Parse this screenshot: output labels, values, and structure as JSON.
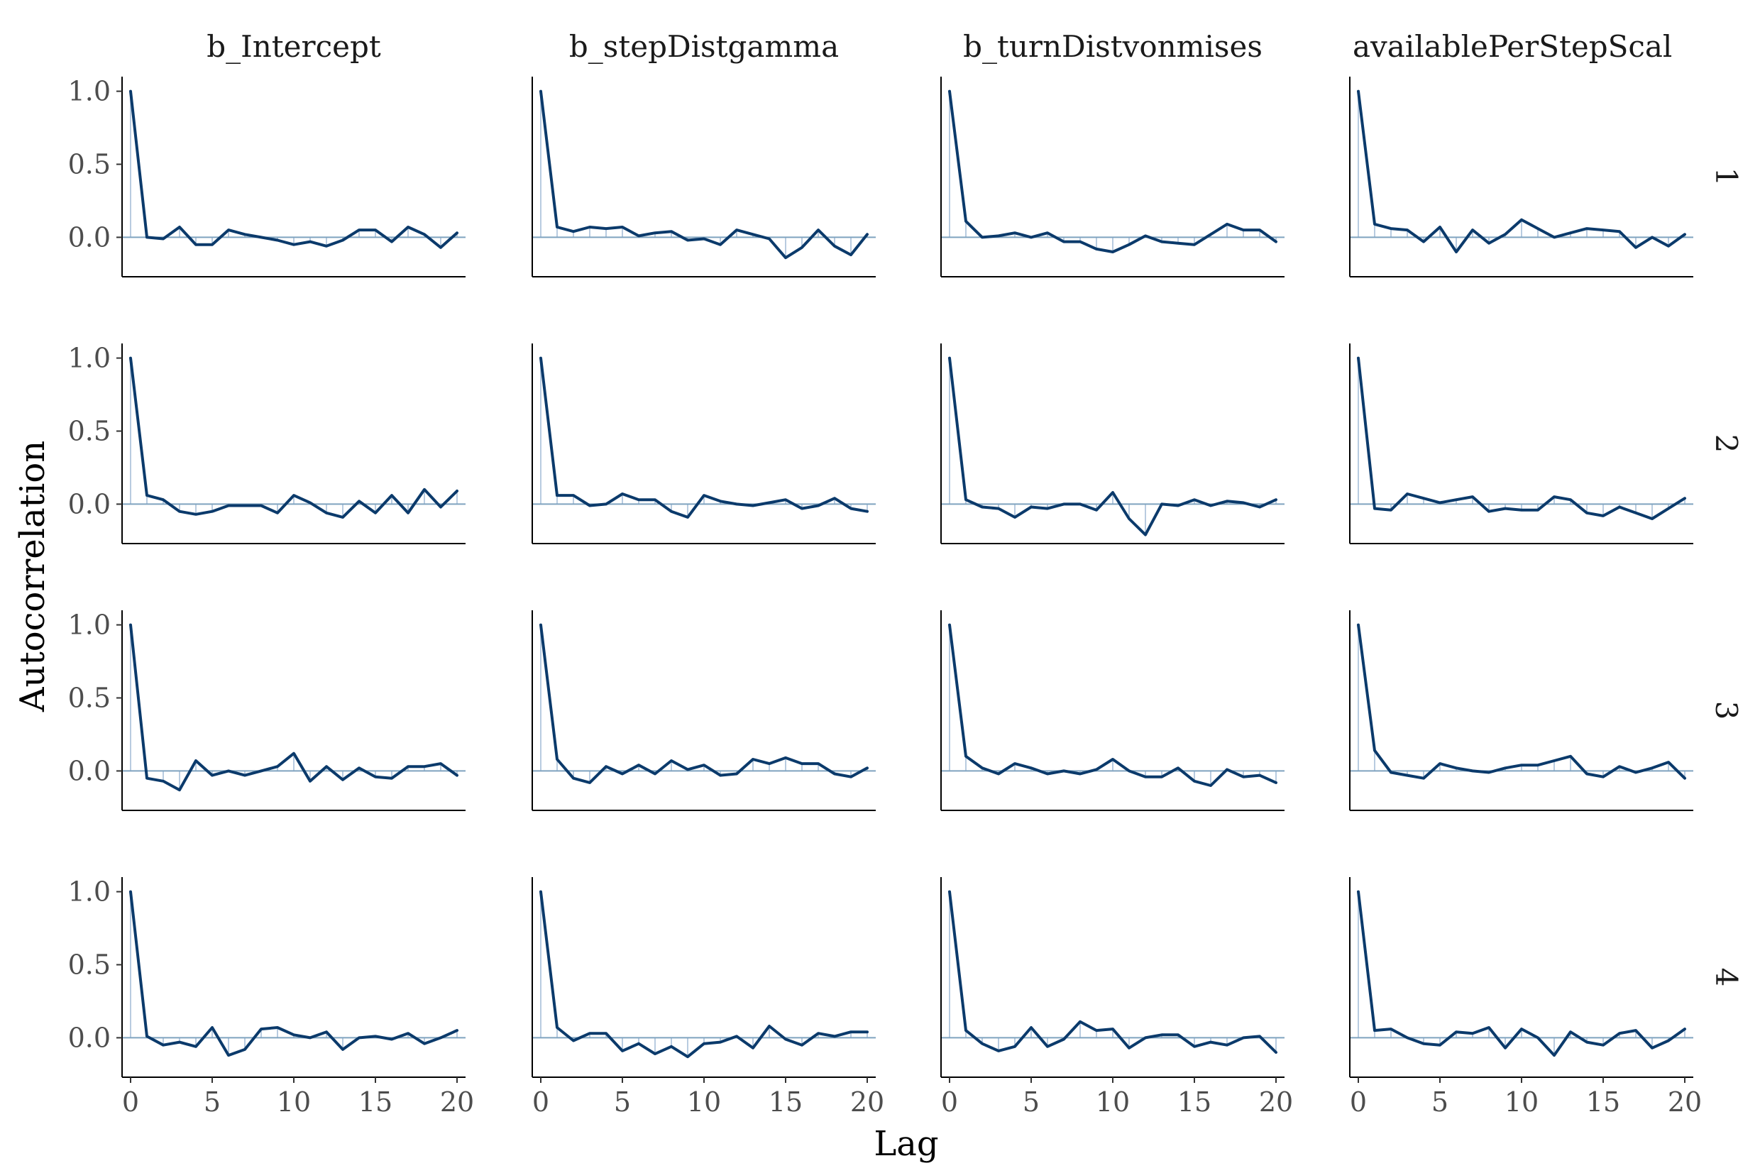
{
  "chart_data": {
    "type": "line",
    "xlabel": "Lag",
    "ylabel": "Autocorrelation",
    "xlim": [
      0,
      20
    ],
    "ylim": [
      -0.27,
      1.1
    ],
    "x_ticks": [
      0,
      5,
      10,
      15,
      20
    ],
    "x_tick_labels": [
      "0",
      "5",
      "10",
      "15",
      "20"
    ],
    "y_ticks": [
      0,
      0.5,
      1
    ],
    "y_tick_labels": [
      "0.0",
      "0.5",
      "1.0"
    ],
    "columns": [
      "b_Intercept",
      "b_stepDistgamma",
      "b_turnDistvonmises",
      "availablePerStepScaled"
    ],
    "column_labels_visible": [
      "b_Intercept",
      "b_stepDistgamma",
      "b_turnDistvonmises",
      "availablePerStepScal"
    ],
    "rows": [
      "1",
      "2",
      "3",
      "4"
    ],
    "grid": false,
    "zero_line": true,
    "colors": {
      "line": "#0b3a6b",
      "zero_line": "#7fa3bf",
      "lag_bar": "#b8cbe0",
      "axis": "#000000"
    },
    "lags": [
      0,
      1,
      2,
      3,
      4,
      5,
      6,
      7,
      8,
      9,
      10,
      11,
      12,
      13,
      14,
      15,
      16,
      17,
      18,
      19,
      20
    ],
    "panels": [
      [
        [
          1.0,
          0.0,
          -0.01,
          0.07,
          -0.05,
          -0.05,
          0.05,
          0.02,
          0.0,
          -0.02,
          -0.05,
          -0.03,
          -0.06,
          -0.02,
          0.05,
          0.05,
          -0.03,
          0.07,
          0.02,
          -0.07,
          0.03
        ],
        [
          1.0,
          0.07,
          0.04,
          0.07,
          0.06,
          0.07,
          0.01,
          0.03,
          0.04,
          -0.02,
          -0.01,
          -0.05,
          0.05,
          0.02,
          -0.01,
          -0.14,
          -0.07,
          0.05,
          -0.06,
          -0.12,
          0.02
        ],
        [
          1.0,
          0.11,
          0.0,
          0.01,
          0.03,
          0.0,
          0.03,
          -0.03,
          -0.03,
          -0.08,
          -0.1,
          -0.05,
          0.01,
          -0.03,
          -0.04,
          -0.05,
          0.02,
          0.09,
          0.05,
          0.05,
          -0.03
        ],
        [
          1.0,
          0.09,
          0.06,
          0.05,
          -0.03,
          0.07,
          -0.1,
          0.05,
          -0.04,
          0.02,
          0.12,
          0.06,
          0.0,
          0.03,
          0.06,
          0.05,
          0.04,
          -0.07,
          0.0,
          -0.06,
          0.02
        ]
      ],
      [
        [
          1.0,
          0.06,
          0.03,
          -0.05,
          -0.07,
          -0.05,
          -0.01,
          -0.01,
          -0.01,
          -0.06,
          0.06,
          0.01,
          -0.06,
          -0.09,
          0.02,
          -0.06,
          0.06,
          -0.06,
          0.1,
          -0.02,
          0.09
        ],
        [
          1.0,
          0.06,
          0.06,
          -0.01,
          0.0,
          0.07,
          0.03,
          0.03,
          -0.05,
          -0.09,
          0.06,
          0.02,
          0.0,
          -0.01,
          0.01,
          0.03,
          -0.03,
          -0.01,
          0.04,
          -0.03,
          -0.05
        ],
        [
          1.0,
          0.03,
          -0.02,
          -0.03,
          -0.09,
          -0.02,
          -0.03,
          0.0,
          0.0,
          -0.04,
          0.08,
          -0.1,
          -0.21,
          0.0,
          -0.01,
          0.03,
          -0.01,
          0.02,
          0.01,
          -0.02,
          0.03
        ],
        [
          1.0,
          -0.03,
          -0.04,
          0.07,
          0.04,
          0.01,
          0.03,
          0.05,
          -0.05,
          -0.03,
          -0.04,
          -0.04,
          0.05,
          0.03,
          -0.06,
          -0.08,
          -0.02,
          -0.06,
          -0.1,
          -0.03,
          0.04
        ]
      ],
      [
        [
          1.0,
          -0.05,
          -0.07,
          -0.13,
          0.07,
          -0.03,
          0.0,
          -0.03,
          0.0,
          0.03,
          0.12,
          -0.07,
          0.03,
          -0.06,
          0.02,
          -0.04,
          -0.05,
          0.03,
          0.03,
          0.05,
          -0.03
        ],
        [
          1.0,
          0.08,
          -0.05,
          -0.08,
          0.03,
          -0.02,
          0.04,
          -0.02,
          0.07,
          0.01,
          0.04,
          -0.03,
          -0.02,
          0.08,
          0.05,
          0.09,
          0.05,
          0.05,
          -0.02,
          -0.04,
          0.02
        ],
        [
          1.0,
          0.1,
          0.02,
          -0.02,
          0.05,
          0.02,
          -0.02,
          0.0,
          -0.02,
          0.01,
          0.08,
          0.0,
          -0.04,
          -0.04,
          0.02,
          -0.07,
          -0.1,
          0.01,
          -0.04,
          -0.03,
          -0.08
        ],
        [
          1.0,
          0.14,
          -0.01,
          -0.03,
          -0.05,
          0.05,
          0.02,
          0.0,
          -0.01,
          0.02,
          0.04,
          0.04,
          0.07,
          0.1,
          -0.02,
          -0.04,
          0.03,
          -0.01,
          0.02,
          0.06,
          -0.05
        ]
      ],
      [
        [
          1.0,
          0.01,
          -0.05,
          -0.03,
          -0.06,
          0.07,
          -0.12,
          -0.08,
          0.06,
          0.07,
          0.02,
          0.0,
          0.04,
          -0.08,
          0.0,
          0.01,
          -0.01,
          0.03,
          -0.04,
          0.0,
          0.05
        ],
        [
          1.0,
          0.07,
          -0.02,
          0.03,
          0.03,
          -0.09,
          -0.04,
          -0.11,
          -0.06,
          -0.13,
          -0.04,
          -0.03,
          0.01,
          -0.07,
          0.08,
          -0.01,
          -0.05,
          0.03,
          0.01,
          0.04,
          0.04
        ],
        [
          1.0,
          0.05,
          -0.04,
          -0.09,
          -0.06,
          0.07,
          -0.06,
          -0.01,
          0.11,
          0.05,
          0.06,
          -0.07,
          0.0,
          0.02,
          0.02,
          -0.06,
          -0.03,
          -0.05,
          0.0,
          0.01,
          -0.1
        ],
        [
          1.0,
          0.05,
          0.06,
          0.0,
          -0.04,
          -0.05,
          0.04,
          0.03,
          0.07,
          -0.07,
          0.06,
          0.0,
          -0.12,
          0.04,
          -0.03,
          -0.05,
          0.03,
          0.05,
          -0.07,
          -0.02,
          0.06
        ]
      ]
    ]
  }
}
